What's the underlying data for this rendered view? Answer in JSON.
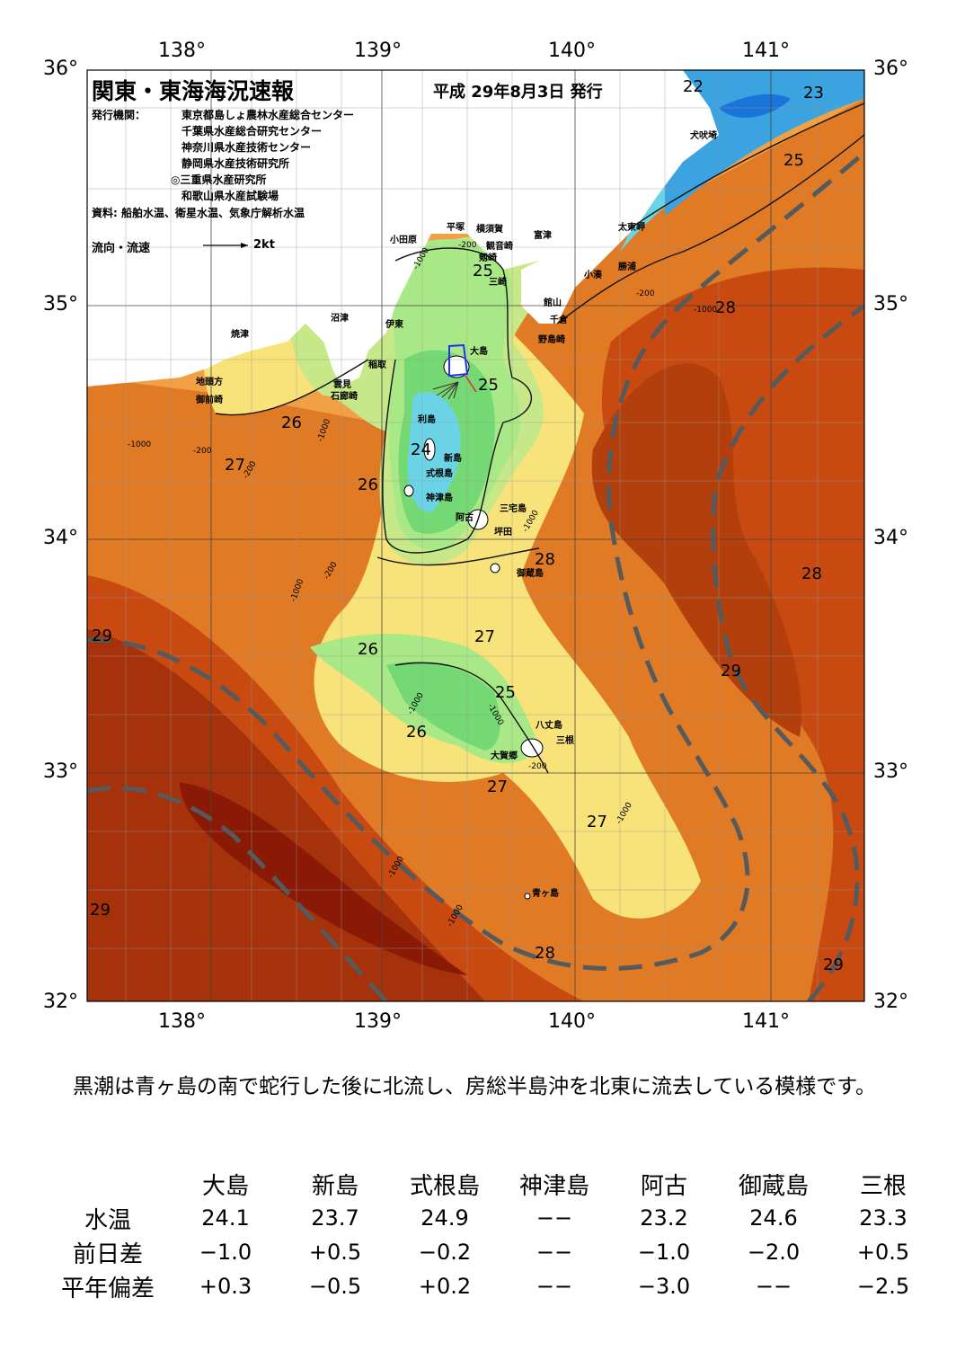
{
  "header": {
    "title": "関東・東海海況速報",
    "date": "平成 29年8月3日 発行",
    "issuer_label": "発行機関：",
    "issuers": [
      "東京都島しょ農林水産総合センター",
      "千葉県水産総合研究センター",
      "神奈川県水産技術センター",
      "静岡県水産技術研究所",
      "◎三重県水産研究所",
      "和歌山県水産試験場"
    ],
    "source": "資料: 船舶水温、衛星水温、気象庁解析水温",
    "flow_legend_label": "流向・流速",
    "flow_legend_scale": "2kt"
  },
  "map": {
    "lon_labels": [
      "138°",
      "139°",
      "140°",
      "141°"
    ],
    "lat_labels": [
      "36°",
      "35°",
      "34°",
      "33°",
      "32°"
    ],
    "sst_contour_labels": [
      "22",
      "23",
      "25",
      "28",
      "25",
      "25",
      "26",
      "27",
      "26",
      "24",
      "28",
      "28",
      "29",
      "26",
      "27",
      "25",
      "29",
      "26",
      "27",
      "27",
      "29",
      "28",
      "29"
    ],
    "depth_labels": [
      "-1000",
      "-200",
      "-200",
      "-1000",
      "-1000",
      "-200",
      "-1000",
      "-200",
      "-1000",
      "-1000",
      "-200",
      "-1000",
      "-1000",
      "-1000",
      "-200",
      "-1000",
      "-1000"
    ],
    "place_names": [
      "犬吠埼",
      "太東岬",
      "勝浦",
      "小湊",
      "富津",
      "観音崎",
      "横須賀",
      "平塚",
      "小田原",
      "剱崎",
      "三崎",
      "館山",
      "千倉",
      "野島崎",
      "沼津",
      "伊東",
      "焼津",
      "稲取",
      "雲見",
      "石廊崎",
      "地頭方",
      "御前崎",
      "大島",
      "利島",
      "新島",
      "式根島",
      "神津島",
      "三宅島",
      "阿古",
      "坪田",
      "御蔵島",
      "八丈島",
      "三根",
      "大賀郷",
      "青ヶ島"
    ],
    "colors": {
      "kuroshio_line": "#555a5c",
      "deep_warm": "#8a1a06",
      "warm": "#c84a10",
      "orange": "#e07a24",
      "light_orange": "#f2a045",
      "yellow": "#f7e37a",
      "light_green": "#a9e887",
      "green": "#74d975",
      "cyan": "#6bd3e6",
      "blue": "#1b74da",
      "land": "#ffffff"
    }
  },
  "summary": "黒潮は青ヶ島の南で蛇行した後に北流し、房総半島沖を北東に流去している模様です。",
  "table": {
    "columns": [
      "大島",
      "新島",
      "式根島",
      "神津島",
      "阿古",
      "御蔵島",
      "三根"
    ],
    "rows": [
      {
        "label": "水温",
        "values": [
          "24.1",
          "23.7",
          "24.9",
          "−−",
          "23.2",
          "24.6",
          "23.3"
        ]
      },
      {
        "label": "前日差",
        "values": [
          "−1.0",
          "+0.5",
          "−0.2",
          "−−",
          "−1.0",
          "−2.0",
          "+0.5"
        ]
      },
      {
        "label": "平年偏差",
        "values": [
          "+0.3",
          "−0.5",
          "+0.2",
          "−−",
          "−3.0",
          "−−",
          "−2.5"
        ]
      }
    ]
  }
}
